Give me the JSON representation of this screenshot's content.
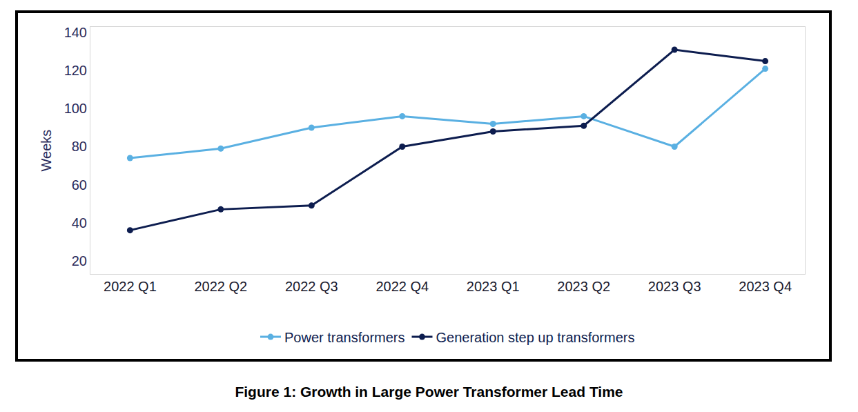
{
  "chart_data": {
    "type": "line",
    "title": "Figure 1: Growth in Large Power Transformer Lead Time",
    "y_label": "Weeks",
    "categories": [
      "2022 Q1",
      "2022 Q2",
      "2022 Q3",
      "2022 Q4",
      "2023 Q1",
      "2023 Q2",
      "2023 Q3",
      "2023 Q4"
    ],
    "series": [
      {
        "name": "Power transformers",
        "color": "#5ab0e2",
        "marker": "circle",
        "values": [
          74,
          79,
          90,
          96,
          92,
          96,
          80,
          121
        ]
      },
      {
        "name": "Generation step up transformers",
        "color": "#0d1d4f",
        "marker": "circle",
        "values": [
          36,
          47,
          49,
          80,
          88,
          91,
          131,
          125
        ]
      }
    ],
    "ylim": [
      13,
      143
    ],
    "yticks": [
      20,
      40,
      60,
      80,
      100,
      120,
      140
    ],
    "grid": false,
    "legend": "bottom"
  }
}
